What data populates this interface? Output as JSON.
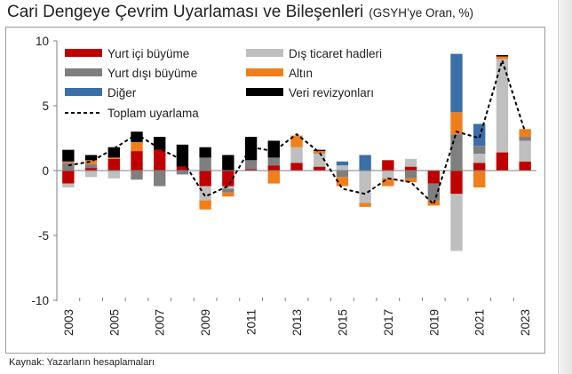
{
  "header": {
    "title": "Cari Dengeye Çevrim Uyarlaması ve Bileşenleri",
    "subtitle": "(GSYH’ye Oran, %)"
  },
  "footer": {
    "source": "Kaynak: Yazarların hesaplamaları"
  },
  "chart_data": {
    "type": "bar",
    "stacked": true,
    "title": "Cari Dengeye Çevrim Uyarlaması ve Bileşenleri",
    "subtitle": "(GSYH’ye Oran, %)",
    "xlabel": "",
    "ylabel": "",
    "ylim": [
      -10,
      10
    ],
    "yticks": [
      10,
      5,
      0,
      -5,
      -10
    ],
    "xtick_labels": [
      "2003",
      "2005",
      "2007",
      "2009",
      "2011",
      "2013",
      "2015",
      "2017",
      "2019",
      "2021",
      "2023"
    ],
    "grid": false,
    "legend_position": "top-left",
    "categories": [
      "2003",
      "2004",
      "2005",
      "2006",
      "2007",
      "2008",
      "2009",
      "2010",
      "2011",
      "2012",
      "2013",
      "2014",
      "2015",
      "2016",
      "2017",
      "2018",
      "2019",
      "2020",
      "2021",
      "2022",
      "2023"
    ],
    "series": [
      {
        "name": "Yurt içi büyüme",
        "color": "#c00000",
        "values": [
          -1.0,
          0.2,
          0.9,
          1.5,
          1.6,
          0.3,
          -1.2,
          -1.2,
          0.1,
          0.4,
          0.6,
          0.3,
          0.0,
          0.0,
          0.8,
          0.3,
          -1.0,
          -1.8,
          0.6,
          1.4,
          0.7
        ]
      },
      {
        "name": "Dış ticaret hadleri",
        "color": "#bfbfbf",
        "values": [
          -0.3,
          -0.5,
          -0.6,
          0.0,
          0.0,
          0.0,
          -1.1,
          -0.2,
          0.0,
          0.0,
          1.2,
          1.0,
          0.4,
          -2.5,
          -0.6,
          0.6,
          0.0,
          -4.4,
          0.7,
          7.2,
          1.6
        ]
      },
      {
        "name": "Yurt dışı büyüme",
        "color": "#7f7f7f",
        "values": [
          0.6,
          0.3,
          0.0,
          -0.7,
          -1.2,
          -0.3,
          1.0,
          -0.3,
          0.7,
          0.6,
          0.0,
          0.0,
          -0.5,
          0.0,
          0.0,
          -0.6,
          -1.3,
          2.8,
          0.6,
          0.0,
          0.3
        ]
      },
      {
        "name": "Altın",
        "color": "#f07f1b",
        "values": [
          0.1,
          0.3,
          0.1,
          0.7,
          0.0,
          0.0,
          -0.7,
          -0.3,
          0.0,
          -1.0,
          0.9,
          0.2,
          -0.7,
          -0.3,
          -0.6,
          -0.3,
          -0.4,
          1.7,
          -1.3,
          0.2,
          0.6
        ]
      },
      {
        "name": "Diğer",
        "color": "#3a6fa8",
        "values": [
          0.0,
          0.0,
          0.0,
          0.0,
          0.0,
          0.0,
          0.0,
          0.0,
          0.0,
          0.0,
          0.0,
          0.0,
          0.3,
          1.2,
          0.0,
          0.0,
          0.0,
          4.5,
          1.7,
          0.0,
          0.0
        ]
      },
      {
        "name": "Veri revizyonları",
        "color": "#000000",
        "values": [
          0.9,
          0.4,
          0.8,
          0.8,
          1.0,
          1.7,
          0.8,
          1.2,
          1.8,
          1.3,
          0.0,
          0.1,
          0.0,
          0.0,
          0.0,
          0.0,
          0.0,
          0.0,
          0.0,
          0.1,
          0.0
        ]
      }
    ],
    "line": {
      "name": "Toplam uyarlama",
      "color": "#000000",
      "style": "dashed",
      "values": [
        0.4,
        0.7,
        1.7,
        2.8,
        1.7,
        0.8,
        -2.0,
        -1.2,
        1.8,
        1.5,
        2.8,
        1.4,
        -1.4,
        -1.8,
        -0.6,
        -0.9,
        -2.6,
        3.0,
        2.5,
        8.5,
        3.0
      ]
    }
  }
}
